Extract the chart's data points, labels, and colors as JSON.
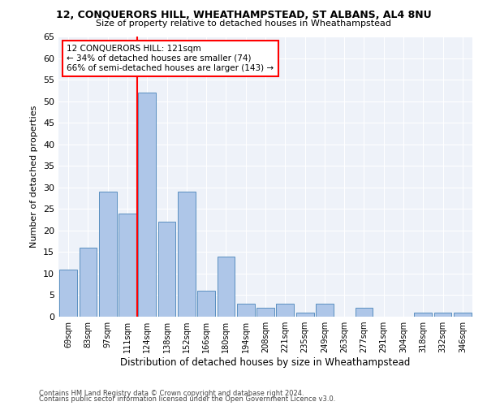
{
  "title": "12, CONQUERORS HILL, WHEATHAMPSTEAD, ST ALBANS, AL4 8NU",
  "subtitle": "Size of property relative to detached houses in Wheathampstead",
  "xlabel": "Distribution of detached houses by size in Wheathampstead",
  "ylabel": "Number of detached properties",
  "categories": [
    "69sqm",
    "83sqm",
    "97sqm",
    "111sqm",
    "124sqm",
    "138sqm",
    "152sqm",
    "166sqm",
    "180sqm",
    "194sqm",
    "208sqm",
    "221sqm",
    "235sqm",
    "249sqm",
    "263sqm",
    "277sqm",
    "291sqm",
    "304sqm",
    "318sqm",
    "332sqm",
    "346sqm"
  ],
  "values": [
    11,
    16,
    29,
    24,
    52,
    22,
    29,
    6,
    14,
    3,
    2,
    3,
    1,
    3,
    0,
    2,
    0,
    0,
    1,
    1,
    1
  ],
  "bar_color": "#aec6e8",
  "bar_edge_color": "#5a8fc0",
  "vline_color": "red",
  "annotation_text": "12 CONQUERORS HILL: 121sqm\n← 34% of detached houses are smaller (74)\n66% of semi-detached houses are larger (143) →",
  "annotation_box_color": "white",
  "annotation_box_edge_color": "red",
  "ylim": [
    0,
    65
  ],
  "yticks": [
    0,
    5,
    10,
    15,
    20,
    25,
    30,
    35,
    40,
    45,
    50,
    55,
    60,
    65
  ],
  "bg_color": "#eef2f9",
  "footer1": "Contains HM Land Registry data © Crown copyright and database right 2024.",
  "footer2": "Contains public sector information licensed under the Open Government Licence v3.0."
}
